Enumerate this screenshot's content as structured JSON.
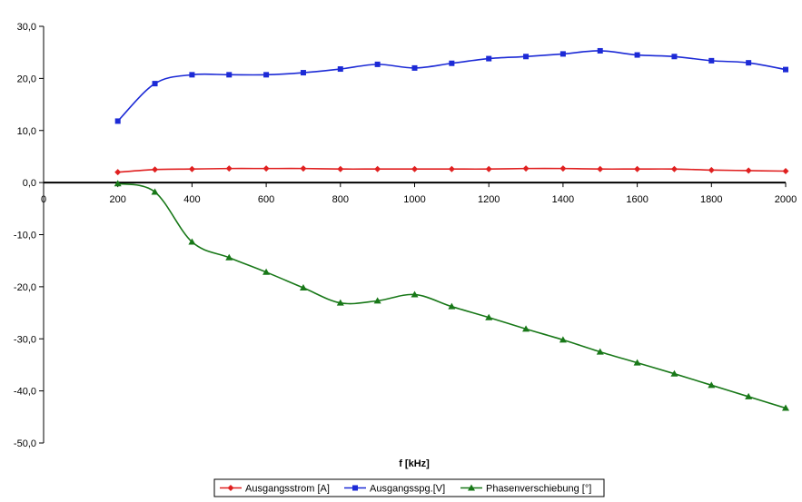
{
  "chart_data": {
    "type": "line",
    "xlabel": "f [kHz]",
    "ylabel": "",
    "xlim": [
      0,
      2000
    ],
    "ylim": [
      -50,
      30
    ],
    "x_ticks": [
      "0",
      "200",
      "400",
      "600",
      "800",
      "1000",
      "1200",
      "1400",
      "1600",
      "1800",
      "2000"
    ],
    "y_ticks": [
      "30,0",
      "20,0",
      "10,0",
      "0,0",
      "-10,0",
      "-20,0",
      "-30,0",
      "-40,0",
      "-50,0"
    ],
    "grid": false,
    "legend_position": "bottom",
    "x": [
      200,
      300,
      400,
      500,
      600,
      700,
      800,
      900,
      1000,
      1100,
      1200,
      1300,
      1400,
      1500,
      1600,
      1700,
      1800,
      1900,
      2000
    ],
    "series": [
      {
        "name": "Ausgangsstrom [A]",
        "color": "#e02020",
        "marker": "diamond",
        "values": [
          2.0,
          2.5,
          2.6,
          2.7,
          2.7,
          2.7,
          2.6,
          2.6,
          2.6,
          2.6,
          2.6,
          2.7,
          2.7,
          2.6,
          2.6,
          2.6,
          2.4,
          2.3,
          2.2
        ]
      },
      {
        "name": "Ausgangsspg.[V]",
        "color": "#1c2ad6",
        "marker": "square",
        "values": [
          11.8,
          19.0,
          20.7,
          20.7,
          20.7,
          21.1,
          21.8,
          22.7,
          22.0,
          22.9,
          23.8,
          24.2,
          24.7,
          25.3,
          24.5,
          24.2,
          23.4,
          23.0,
          21.7
        ]
      },
      {
        "name": "Phasenverschiebung [°]",
        "color": "#187818",
        "marker": "triangle",
        "values": [
          -0.2,
          -1.8,
          -11.4,
          -14.4,
          -17.2,
          -20.2,
          -23.1,
          -22.7,
          -21.5,
          -23.8,
          -25.9,
          -28.1,
          -30.2,
          -32.5,
          -34.6,
          -36.7,
          -38.9,
          -41.1,
          -43.3
        ]
      }
    ]
  }
}
